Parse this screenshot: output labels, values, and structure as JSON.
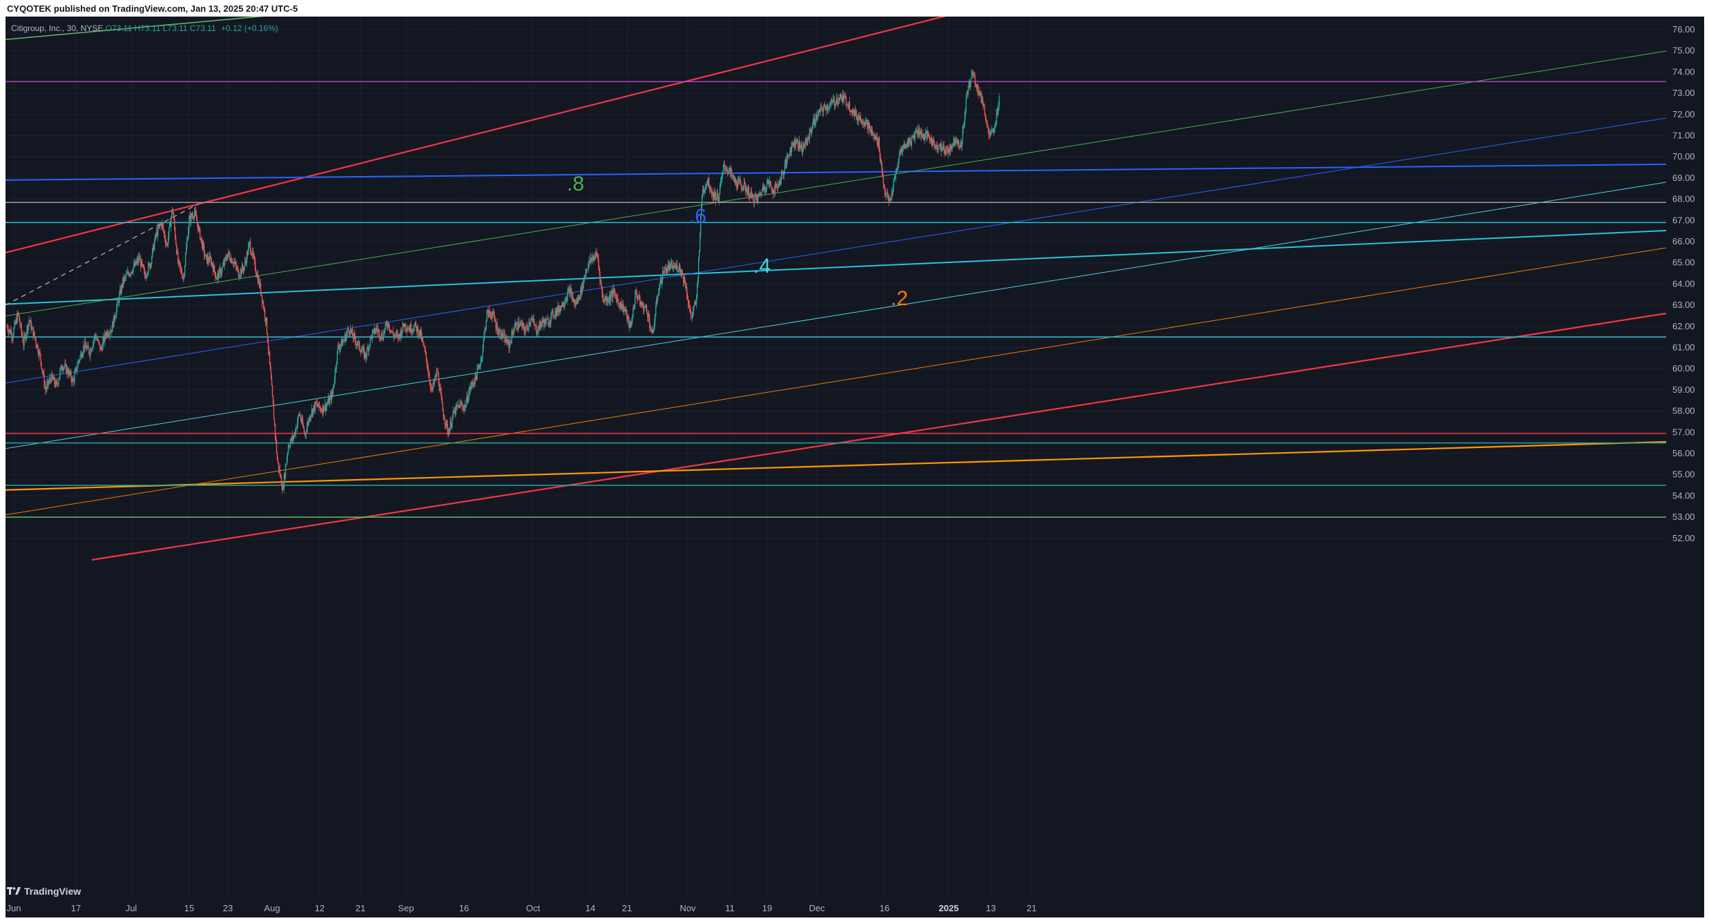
{
  "publisher_line": "CYQOTEK published on TradingView.com, Jan 13, 2025 20:47 UTC-5",
  "legend": {
    "symbol": "Citigroup, Inc., 30, NYSE",
    "open": "O73.11",
    "high": "H73.11",
    "low": "L73.11",
    "close": "C73.11",
    "change": "+0.12 (+0.16%)"
  },
  "brand": "TradingView",
  "colors": {
    "background": "#131722",
    "up_candle": "#26a69a",
    "down_candle": "#ef5350",
    "axis_text": "#b2b5be"
  },
  "chart_data": {
    "type": "candlestick",
    "symbol": "Citigroup, Inc., 30, NYSE",
    "ylim": [
      51.5,
      76.5
    ],
    "y_ticks": [
      52.0,
      53.0,
      54.0,
      55.0,
      56.0,
      57.0,
      58.0,
      59.0,
      60.0,
      61.0,
      62.0,
      63.0,
      64.0,
      65.0,
      66.0,
      67.0,
      68.0,
      69.0,
      70.0,
      71.0,
      72.0,
      73.0,
      74.0,
      75.0,
      76.0
    ],
    "x_ticks": [
      {
        "label": "Jun",
        "bold": false
      },
      {
        "label": "17",
        "bold": false
      },
      {
        "label": "Jul",
        "bold": false
      },
      {
        "label": "15",
        "bold": false
      },
      {
        "label": "23",
        "bold": false
      },
      {
        "label": "Aug",
        "bold": false
      },
      {
        "label": "12",
        "bold": false
      },
      {
        "label": "21",
        "bold": false
      },
      {
        "label": "Sep",
        "bold": false
      },
      {
        "label": "16",
        "bold": false
      },
      {
        "label": "Oct",
        "bold": false
      },
      {
        "label": "14",
        "bold": false
      },
      {
        "label": "21",
        "bold": false
      },
      {
        "label": "Nov",
        "bold": false
      },
      {
        "label": "11",
        "bold": false
      },
      {
        "label": "19",
        "bold": false
      },
      {
        "label": "Dec",
        "bold": false
      },
      {
        "label": "16",
        "bold": false
      },
      {
        "label": "2025",
        "bold": true
      },
      {
        "label": "13",
        "bold": false
      },
      {
        "label": "21",
        "bold": false
      }
    ],
    "fib_labels": [
      {
        "text": ".8",
        "color": "#4caf50"
      },
      {
        "text": ".6",
        "color": "#2962ff"
      },
      {
        "text": ".4",
        "color": "#4dd0e1"
      },
      {
        "text": ".2",
        "color": "#f57c00"
      }
    ],
    "horizontal_levels": [
      {
        "price": 73.55,
        "color": "#ab47bc"
      },
      {
        "price": 67.85,
        "color": "#9e9e9e"
      },
      {
        "price": 66.9,
        "color": "#26c6da"
      },
      {
        "price": 61.5,
        "color": "#26c6da"
      },
      {
        "price": 56.95,
        "color": "#f23645"
      },
      {
        "price": 56.5,
        "color": "#26a69a"
      },
      {
        "price": 54.5,
        "color": "#26a69a"
      },
      {
        "price": 53.0,
        "color": "#66bb6a"
      }
    ],
    "path_points": [
      [
        62.0,
        61.6,
        62.6,
        61.2,
        62.3,
        61.5,
        60.6,
        59.0,
        59.6,
        59.2,
        60.2,
        59.9,
        59.4,
        60.4,
        61.1,
        60.8,
        61.6,
        60.9,
        61.7,
        61.9,
        63.0,
        64.1,
        64.5,
        64.8,
        65.2,
        64.4,
        65.0,
        66.3,
        66.9,
        65.8,
        67.6,
        65.0,
        64.3,
        67.0,
        67.4,
        66.3,
        65.2,
        65.1,
        64.3,
        64.7,
        65.4,
        65.1,
        64.5,
        64.8,
        65.9,
        64.8,
        63.7,
        62.2,
        59.0,
        55.7,
        54.3,
        56.4,
        56.8,
        57.9,
        56.9,
        57.9,
        58.3,
        58.1,
        58.3,
        58.8,
        61.0,
        61.3,
        61.9,
        61.4,
        61.0,
        60.6,
        61.5,
        61.9,
        61.5,
        62.2,
        61.6,
        61.5,
        62.1,
        61.9,
        62.0,
        61.6,
        60.5,
        58.9,
        59.9,
        58.0,
        57.0,
        57.9,
        58.3,
        58.2,
        59.1,
        59.6,
        60.5,
        62.6,
        62.6,
        61.8,
        61.5,
        61.1,
        62.0,
        62.1,
        61.8,
        62.4,
        61.8,
        62.2,
        62.2,
        62.6,
        62.8,
        63.2,
        63.7,
        63.0,
        63.6,
        64.7,
        65.2,
        65.4,
        63.3,
        63.3,
        63.6,
        63.1,
        62.8,
        61.9,
        63.6,
        63.0,
        62.8,
        61.5,
        63.6,
        64.6,
        64.8,
        64.8,
        64.8,
        64.0,
        62.4,
        63.2,
        68.3,
        68.9,
        68.2,
        68.1,
        69.6,
        69.3,
        68.8,
        68.7,
        68.5,
        68.1,
        68.0,
        68.5,
        68.8,
        68.4,
        68.8,
        69.5,
        70.4,
        70.8,
        70.4,
        70.7,
        71.5,
        72.0,
        72.3,
        72.4,
        72.6,
        72.8,
        72.7,
        72.3,
        71.9,
        71.8,
        71.5,
        71.0,
        70.7,
        68.5,
        67.8,
        69.0,
        70.3,
        70.6,
        70.8,
        71.3,
        71.0,
        71.0,
        70.6,
        70.5,
        70.3,
        70.4,
        70.9,
        70.5,
        72.9,
        74.0,
        73.2,
        72.5,
        71.0,
        71.2,
        73.1
      ]
    ]
  }
}
